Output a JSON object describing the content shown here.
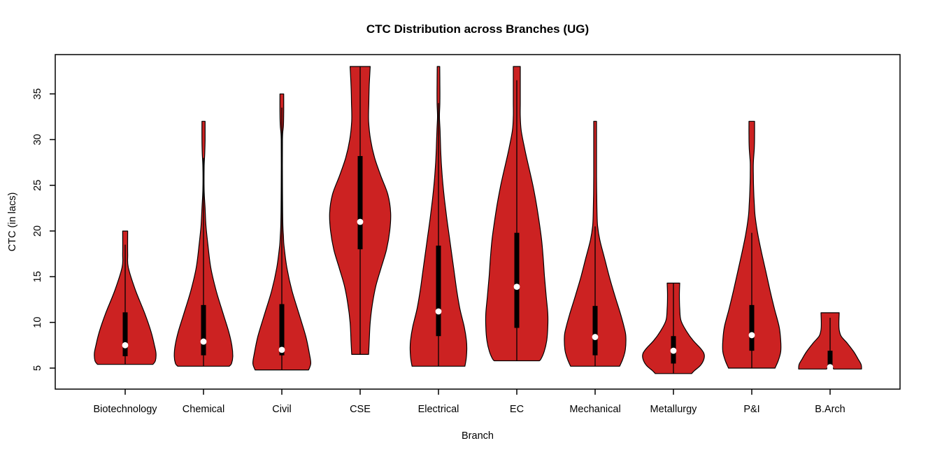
{
  "title": "CTC Distribution across Branches (UG)",
  "x_axis": {
    "label": "Branch"
  },
  "y_axis": {
    "label": "CTC (in lacs)"
  },
  "colors": {
    "background": "#FFFFFF",
    "frame": "#000000",
    "violin_fill": "#CC2222",
    "violin_outline": "#000000",
    "box": "#000000",
    "whisker_line": "#000000",
    "median_dot": "#FFFFFF",
    "text": "#000000"
  },
  "chart_data": {
    "type": "violin",
    "title": "CTC Distribution across Branches (UG)",
    "xlabel": "Branch",
    "ylabel": "CTC (in lacs)",
    "grid": false,
    "legend": "none",
    "yticks": [
      5,
      10,
      15,
      20,
      25,
      30,
      35
    ],
    "ylim": [
      2.7,
      39.3
    ],
    "categories": [
      "Biotechnology",
      "Chemical",
      "Civil",
      "CSE",
      "Electrical",
      "EC",
      "Mechanical",
      "Metallurgy",
      "P&I",
      "B.Arch"
    ],
    "branches": [
      {
        "label": "Biotechnology",
        "min": 5.4,
        "max": 20.0,
        "median": 7.5,
        "q1": 6.3,
        "q3": 11.1,
        "whisker_low": 5.4,
        "whisker_high": 18.5,
        "bottom_notch": false,
        "profile": [
          [
            20.0,
            0.08
          ],
          [
            17.5,
            0.08
          ],
          [
            16.0,
            0.1
          ],
          [
            13.5,
            0.33
          ],
          [
            11.0,
            0.62
          ],
          [
            9.0,
            0.82
          ],
          [
            7.5,
            0.93
          ],
          [
            6.6,
            0.98
          ],
          [
            5.8,
            0.96
          ],
          [
            5.4,
            0.88
          ]
        ]
      },
      {
        "label": "Chemical",
        "min": 5.2,
        "max": 32.0,
        "median": 7.9,
        "q1": 6.4,
        "q3": 11.9,
        "whisker_low": 5.2,
        "whisker_high": 28.0,
        "bottom_notch": false,
        "profile": [
          [
            32.0,
            0.05
          ],
          [
            30.0,
            0.05
          ],
          [
            28.5,
            0.04
          ],
          [
            27.0,
            0.02
          ],
          [
            24.5,
            0.02
          ],
          [
            22.5,
            0.05
          ],
          [
            20.5,
            0.08
          ],
          [
            18.5,
            0.14
          ],
          [
            16.0,
            0.23
          ],
          [
            13.5,
            0.4
          ],
          [
            11.0,
            0.62
          ],
          [
            9.0,
            0.8
          ],
          [
            7.5,
            0.9
          ],
          [
            6.3,
            0.93
          ],
          [
            5.5,
            0.89
          ],
          [
            5.2,
            0.82
          ]
        ]
      },
      {
        "label": "Civil",
        "min": 4.8,
        "max": 35.0,
        "median": 7.0,
        "q1": 6.4,
        "q3": 12.0,
        "whisker_low": 4.8,
        "whisker_high": 33.5,
        "bottom_notch": false,
        "profile": [
          [
            35.0,
            0.06
          ],
          [
            33.0,
            0.06
          ],
          [
            31.5,
            0.05
          ],
          [
            30.0,
            0.02
          ],
          [
            25.0,
            0.02
          ],
          [
            21.0,
            0.03
          ],
          [
            19.5,
            0.05
          ],
          [
            18.4,
            0.07
          ],
          [
            16.0,
            0.16
          ],
          [
            13.5,
            0.32
          ],
          [
            11.0,
            0.54
          ],
          [
            8.5,
            0.76
          ],
          [
            6.5,
            0.88
          ],
          [
            5.5,
            0.92
          ],
          [
            4.8,
            0.85
          ]
        ]
      },
      {
        "label": "CSE",
        "min": 6.5,
        "max": 38.0,
        "median": 21.0,
        "q1": 18.0,
        "q3": 28.2,
        "whisker_low": 6.5,
        "whisker_high": 38.0,
        "bottom_notch": false,
        "profile": [
          [
            38.0,
            0.32
          ],
          [
            36.0,
            0.29
          ],
          [
            34.0,
            0.275
          ],
          [
            32.0,
            0.27
          ],
          [
            30.0,
            0.33
          ],
          [
            28.0,
            0.46
          ],
          [
            26.0,
            0.66
          ],
          [
            24.0,
            0.88
          ],
          [
            22.0,
            0.97
          ],
          [
            20.0,
            0.94
          ],
          [
            18.0,
            0.84
          ],
          [
            16.0,
            0.67
          ],
          [
            14.0,
            0.5
          ],
          [
            12.0,
            0.39
          ],
          [
            10.0,
            0.32
          ],
          [
            8.0,
            0.29
          ],
          [
            6.5,
            0.27
          ]
        ]
      },
      {
        "label": "Electrical",
        "min": 5.2,
        "max": 38.0,
        "median": 11.2,
        "q1": 8.5,
        "q3": 18.4,
        "whisker_low": 5.2,
        "whisker_high": 34.0,
        "bottom_notch": false,
        "profile": [
          [
            38.0,
            0.04
          ],
          [
            36.0,
            0.045
          ],
          [
            34.0,
            0.045
          ],
          [
            32.5,
            0.03
          ],
          [
            31.0,
            0.05
          ],
          [
            29.0,
            0.07
          ],
          [
            27.5,
            0.09
          ],
          [
            25.5,
            0.13
          ],
          [
            23.5,
            0.19
          ],
          [
            21.5,
            0.26
          ],
          [
            19.5,
            0.34
          ],
          [
            17.5,
            0.42
          ],
          [
            15.5,
            0.5
          ],
          [
            13.5,
            0.58
          ],
          [
            11.5,
            0.68
          ],
          [
            9.5,
            0.82
          ],
          [
            8.0,
            0.89
          ],
          [
            7.0,
            0.9
          ],
          [
            6.0,
            0.88
          ],
          [
            5.2,
            0.84
          ]
        ]
      },
      {
        "label": "EC",
        "min": 5.8,
        "max": 38.0,
        "median": 13.9,
        "q1": 9.4,
        "q3": 19.8,
        "whisker_low": 5.8,
        "whisker_high": 36.5,
        "bottom_notch": false,
        "profile": [
          [
            38.0,
            0.11
          ],
          [
            36.0,
            0.11
          ],
          [
            34.0,
            0.11
          ],
          [
            32.5,
            0.11
          ],
          [
            31.0,
            0.14
          ],
          [
            29.0,
            0.25
          ],
          [
            27.0,
            0.38
          ],
          [
            25.0,
            0.51
          ],
          [
            23.0,
            0.62
          ],
          [
            21.0,
            0.71
          ],
          [
            19.0,
            0.79
          ],
          [
            17.0,
            0.84
          ],
          [
            15.0,
            0.88
          ],
          [
            13.0,
            0.93
          ],
          [
            11.0,
            0.985
          ],
          [
            9.5,
            0.985
          ],
          [
            8.0,
            0.95
          ],
          [
            6.8,
            0.87
          ],
          [
            6.0,
            0.77
          ],
          [
            5.8,
            0.72
          ]
        ]
      },
      {
        "label": "Mechanical",
        "min": 5.2,
        "max": 32.0,
        "median": 8.4,
        "q1": 6.4,
        "q3": 11.8,
        "whisker_low": 5.2,
        "whisker_high": 20.5,
        "bottom_notch": false,
        "profile": [
          [
            32.0,
            0.045
          ],
          [
            30.0,
            0.045
          ],
          [
            28.0,
            0.045
          ],
          [
            26.0,
            0.045
          ],
          [
            24.0,
            0.05
          ],
          [
            22.0,
            0.06
          ],
          [
            20.5,
            0.08
          ],
          [
            19.0,
            0.15
          ],
          [
            17.0,
            0.3
          ],
          [
            15.0,
            0.45
          ],
          [
            13.0,
            0.62
          ],
          [
            11.0,
            0.8
          ],
          [
            9.5,
            0.92
          ],
          [
            8.5,
            0.975
          ],
          [
            7.0,
            0.96
          ],
          [
            6.0,
            0.88
          ],
          [
            5.2,
            0.78
          ]
        ]
      },
      {
        "label": "Metallurgy",
        "min": 4.4,
        "max": 14.3,
        "median": 6.9,
        "q1": 5.5,
        "q3": 8.5,
        "whisker_low": 4.4,
        "whisker_high": 14.3,
        "bottom_notch": false,
        "profile": [
          [
            14.3,
            0.2
          ],
          [
            13.0,
            0.19
          ],
          [
            11.5,
            0.2
          ],
          [
            10.2,
            0.24
          ],
          [
            9.0,
            0.42
          ],
          [
            8.0,
            0.63
          ],
          [
            7.2,
            0.85
          ],
          [
            6.6,
            0.97
          ],
          [
            6.0,
            0.97
          ],
          [
            5.3,
            0.86
          ],
          [
            4.7,
            0.66
          ],
          [
            4.4,
            0.58
          ]
        ]
      },
      {
        "label": "P&I",
        "min": 5.0,
        "max": 32.0,
        "median": 8.6,
        "q1": 6.9,
        "q3": 11.9,
        "whisker_low": 5.0,
        "whisker_high": 19.8,
        "bottom_notch": false,
        "profile": [
          [
            32.0,
            0.09
          ],
          [
            30.5,
            0.09
          ],
          [
            29.0,
            0.08
          ],
          [
            27.5,
            0.05
          ],
          [
            26.0,
            0.05
          ],
          [
            24.5,
            0.06
          ],
          [
            23.0,
            0.08
          ],
          [
            21.5,
            0.11
          ],
          [
            19.5,
            0.2
          ],
          [
            17.5,
            0.32
          ],
          [
            15.5,
            0.45
          ],
          [
            13.5,
            0.58
          ],
          [
            11.5,
            0.72
          ],
          [
            9.5,
            0.87
          ],
          [
            8.0,
            0.92
          ],
          [
            6.8,
            0.92
          ],
          [
            5.8,
            0.84
          ],
          [
            5.0,
            0.74
          ]
        ]
      },
      {
        "label": "B.Arch",
        "min": 4.9,
        "max": 11.1,
        "median": 5.1,
        "q1": 5.0,
        "q3": 6.9,
        "whisker_low": 4.9,
        "whisker_high": 10.5,
        "bottom_notch": true,
        "profile": [
          [
            11.05,
            0.29
          ],
          [
            10.0,
            0.28
          ],
          [
            9.2,
            0.29
          ],
          [
            8.5,
            0.35
          ],
          [
            7.7,
            0.55
          ],
          [
            6.8,
            0.75
          ],
          [
            6.0,
            0.89
          ],
          [
            5.4,
            0.985
          ],
          [
            4.9,
            1.0
          ]
        ]
      }
    ]
  }
}
